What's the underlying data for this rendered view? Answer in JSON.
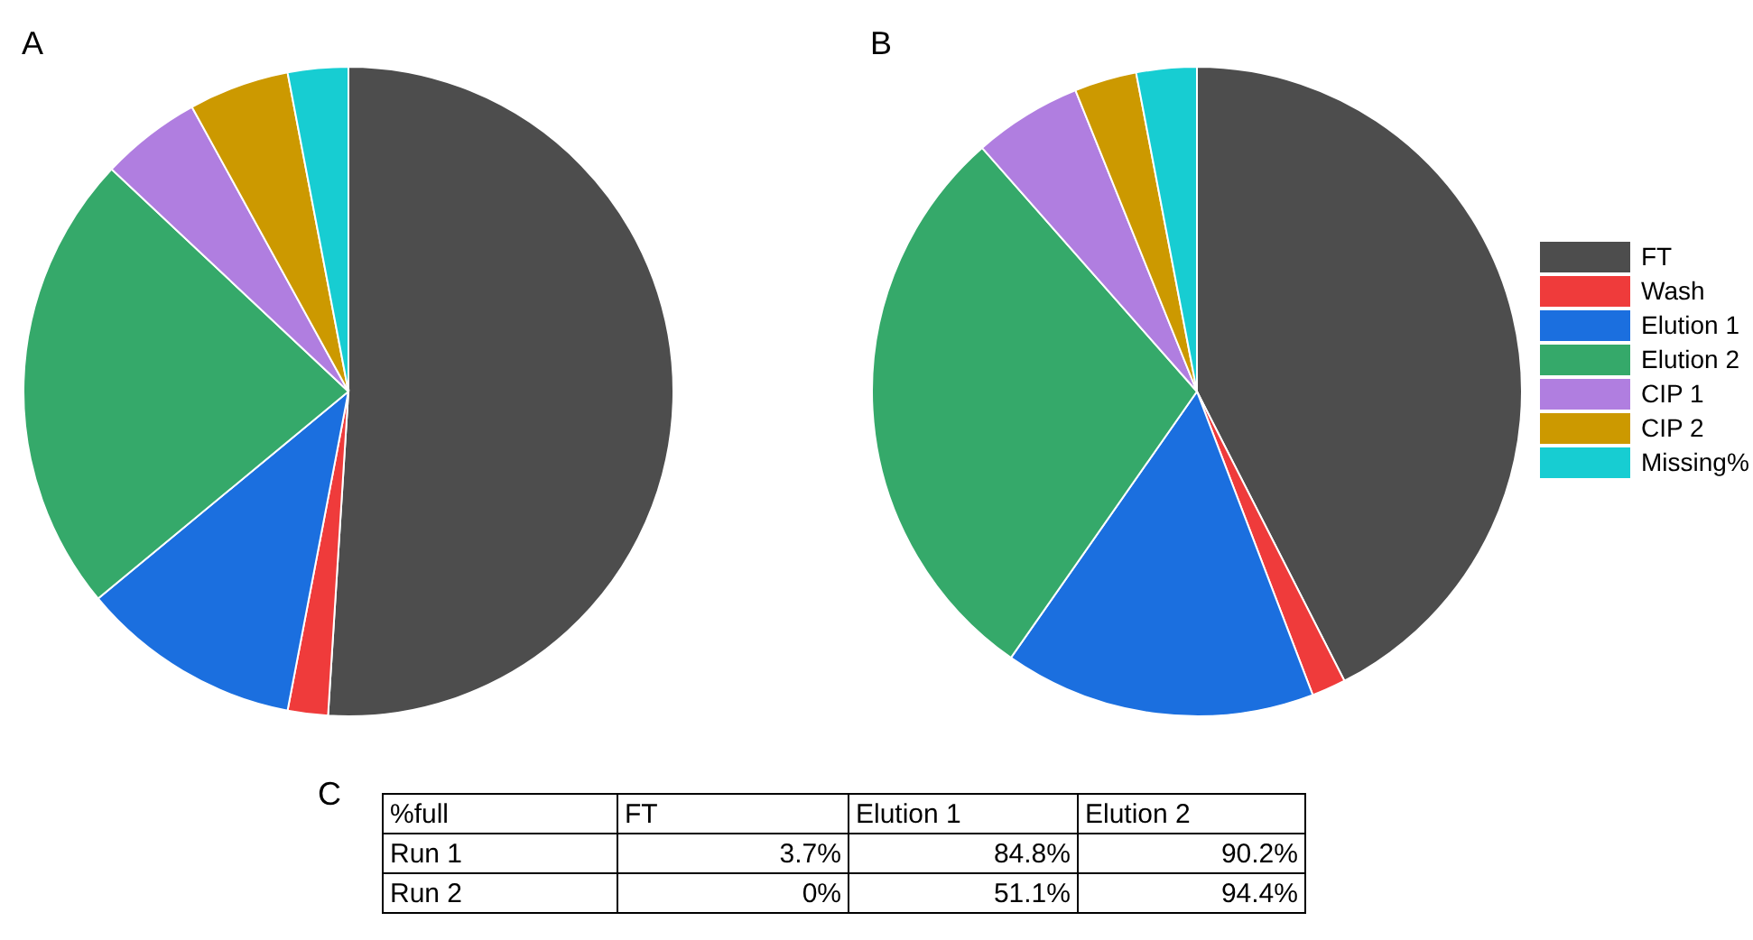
{
  "chart_data": [
    {
      "type": "pie",
      "title": "A",
      "categories": [
        null,
        null,
        null,
        null,
        null,
        null,
        null
      ],
      "values": [
        51,
        2,
        11,
        23,
        5,
        5,
        3
      ],
      "colors": [
        "#4d4d4d",
        "#ef3b3b",
        "#1b6fdf",
        "#35a96a",
        "#b07ee0",
        "#cc9900",
        "#17cdd2"
      ]
    },
    {
      "type": "pie",
      "title": "B",
      "categories": [
        "FT",
        "Wash",
        "Elution 1",
        "Elution 2",
        "CIP 1",
        "CIP 2",
        "Missing%"
      ],
      "values": [
        42.5,
        1.7,
        15.5,
        28.8,
        5.4,
        3.1,
        3.0
      ],
      "colors": [
        "#4d4d4d",
        "#ef3b3b",
        "#1b6fdf",
        "#35a96a",
        "#b07ee0",
        "#cc9900",
        "#17cdd2"
      ],
      "legend": "right"
    },
    {
      "type": "other",
      "title": "C",
      "ylabel": "%full",
      "categories": [
        "FT",
        "Elution 1",
        "Elution 2"
      ],
      "y_categories": [
        "Run 1",
        "Run 2"
      ],
      "cell_labels": [
        [
          "3.7%",
          "84.8%",
          "90.2%"
        ],
        [
          "0%",
          "51.1%",
          "94.4%"
        ]
      ]
    }
  ]
}
